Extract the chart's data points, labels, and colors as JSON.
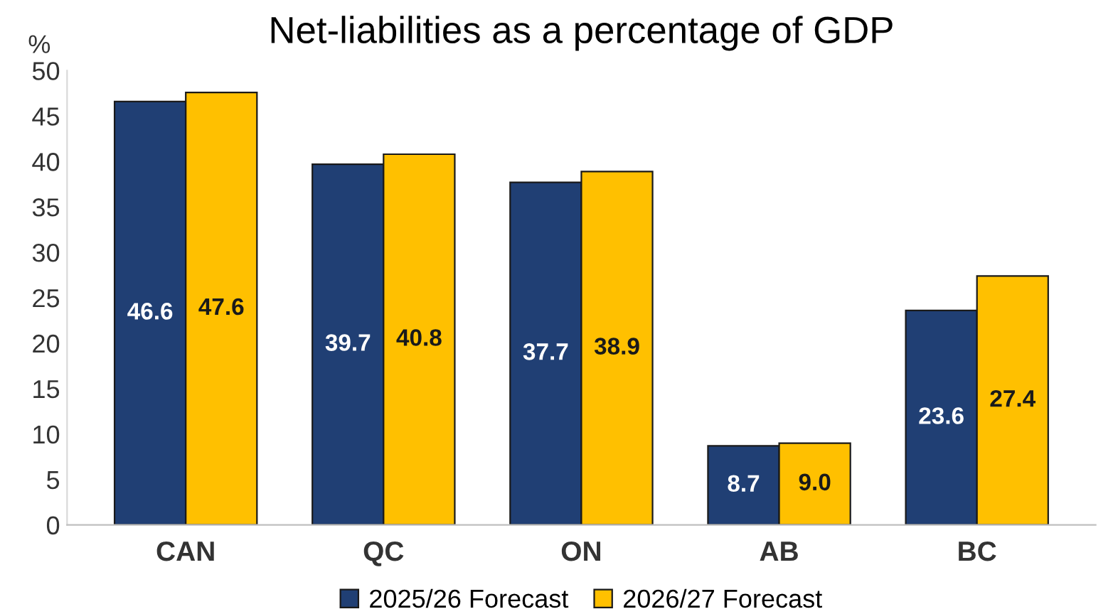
{
  "chart_data": {
    "type": "bar",
    "title": "Net-liabilities as a percentage of GDP",
    "ylabel": "%",
    "categories": [
      "CAN",
      "QC",
      "ON",
      "AB",
      "BC"
    ],
    "series": [
      {
        "name": "2025/26 Forecast",
        "color": "#203f74",
        "values": [
          46.6,
          39.7,
          37.7,
          8.7,
          23.6
        ],
        "value_labels": [
          "46.6",
          "39.7",
          "37.7",
          "8.7",
          "23.6"
        ]
      },
      {
        "name": "2026/27 Forecast",
        "color": "#ffc000",
        "values": [
          47.6,
          40.8,
          38.9,
          9.0,
          27.4
        ],
        "value_labels": [
          "47.6",
          "40.8",
          "38.9",
          "9.0",
          "27.4"
        ]
      }
    ],
    "ylim": [
      0,
      50
    ],
    "yticks": [
      0,
      5,
      10,
      15,
      20,
      25,
      30,
      35,
      40,
      45,
      50
    ],
    "grid": false,
    "legend": "bottom"
  }
}
